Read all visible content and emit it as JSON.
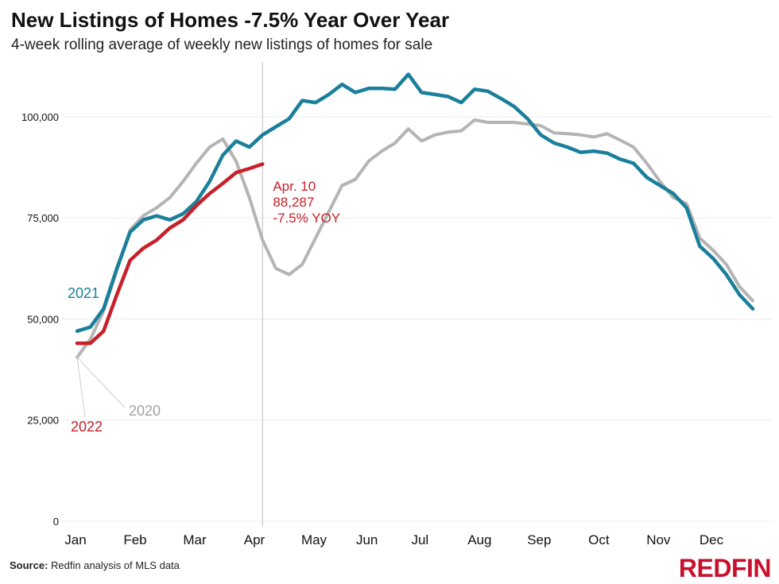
{
  "title": "New Listings of Homes -7.5% Year Over Year",
  "subtitle": "4-week rolling average of weekly new listings of homes for sale",
  "source_label": "Source:",
  "source_text": "Redfin analysis of MLS data",
  "logo": "REDFIN",
  "colors": {
    "2020": "#b4b4b4",
    "2021": "#1a7f9b",
    "2022": "#c8202a",
    "marker": "#c8c8c8"
  },
  "chart_data": {
    "type": "line",
    "title": "New Listings of Homes -7.5% Year Over Year",
    "xlabel": "",
    "ylabel": "",
    "x_unit": "week of year",
    "xlim": [
      1,
      52
    ],
    "ylim": [
      0,
      110000
    ],
    "yticks": [
      0,
      25000,
      50000,
      75000,
      100000
    ],
    "ytick_labels": [
      "0",
      "25,000",
      "50,000",
      "75,000",
      "100,000"
    ],
    "months": [
      "Jan",
      "Feb",
      "Mar",
      "Apr",
      "May",
      "Jun",
      "Jul",
      "Aug",
      "Sep",
      "Oct",
      "Nov",
      "Dec"
    ],
    "month_weeks": [
      1,
      5.5,
      10,
      14.5,
      19,
      23,
      27,
      31.5,
      36,
      40.5,
      45,
      49
    ],
    "series": [
      {
        "name": "2020",
        "label": "2020",
        "x": [
          1,
          2,
          3,
          4,
          5,
          6,
          7,
          8,
          9,
          10,
          11,
          12,
          13,
          14,
          15,
          16,
          17,
          18,
          19,
          20,
          21,
          22,
          23,
          24,
          25,
          26,
          27,
          28,
          29,
          30,
          31,
          32,
          33,
          34,
          35,
          36,
          37,
          38,
          39,
          40,
          41,
          42,
          43,
          44,
          45,
          46,
          47,
          48,
          49,
          50,
          51,
          52
        ],
        "values": [
          40500,
          45000,
          52000,
          62000,
          72000,
          75500,
          77500,
          80000,
          84000,
          88500,
          92500,
          94500,
          89000,
          80000,
          69500,
          62500,
          61000,
          63500,
          70000,
          76500,
          83000,
          84500,
          89000,
          91500,
          93500,
          97000,
          94000,
          95500,
          96200,
          96500,
          99200,
          98600,
          98600,
          98600,
          98200,
          97800,
          96000,
          95800,
          95500,
          95000,
          95800,
          94200,
          92500,
          88500,
          84000,
          80000,
          78500,
          70000,
          67000,
          63500,
          58000,
          54500
        ]
      },
      {
        "name": "2021",
        "label": "2021",
        "x": [
          1,
          2,
          3,
          4,
          5,
          6,
          7,
          8,
          9,
          10,
          11,
          12,
          13,
          14,
          15,
          16,
          17,
          18,
          19,
          20,
          21,
          22,
          23,
          24,
          25,
          26,
          27,
          28,
          29,
          30,
          31,
          32,
          33,
          34,
          35,
          36,
          37,
          38,
          39,
          40,
          41,
          42,
          43,
          44,
          45,
          46,
          47,
          48,
          49,
          50,
          51,
          52
        ],
        "values": [
          47000,
          48000,
          52500,
          62500,
          71500,
          74500,
          75500,
          74500,
          76000,
          79000,
          84000,
          90500,
          94000,
          92500,
          95500,
          97500,
          99500,
          104000,
          103500,
          105500,
          108000,
          106000,
          107000,
          107000,
          106800,
          110500,
          106000,
          105500,
          105000,
          103500,
          106800,
          106300,
          104500,
          102500,
          99500,
          95500,
          93500,
          92500,
          91200,
          91500,
          91000,
          89500,
          88500,
          85000,
          83000,
          81000,
          77500,
          68000,
          65000,
          61000,
          56000,
          52500
        ]
      },
      {
        "name": "2022",
        "label": "2022",
        "x": [
          1,
          2,
          3,
          4,
          5,
          6,
          7,
          8,
          9,
          10,
          11,
          12,
          13,
          14,
          15
        ],
        "values": [
          44000,
          44000,
          47000,
          56000,
          64500,
          67500,
          69500,
          72500,
          74500,
          78000,
          81000,
          83500,
          86200,
          87200,
          88287
        ]
      }
    ],
    "annotation": {
      "series": "2022",
      "x": 15,
      "y": 88287,
      "date": "Apr. 10",
      "value_text": "88,287",
      "change_text": "-7.5% YOY"
    }
  }
}
